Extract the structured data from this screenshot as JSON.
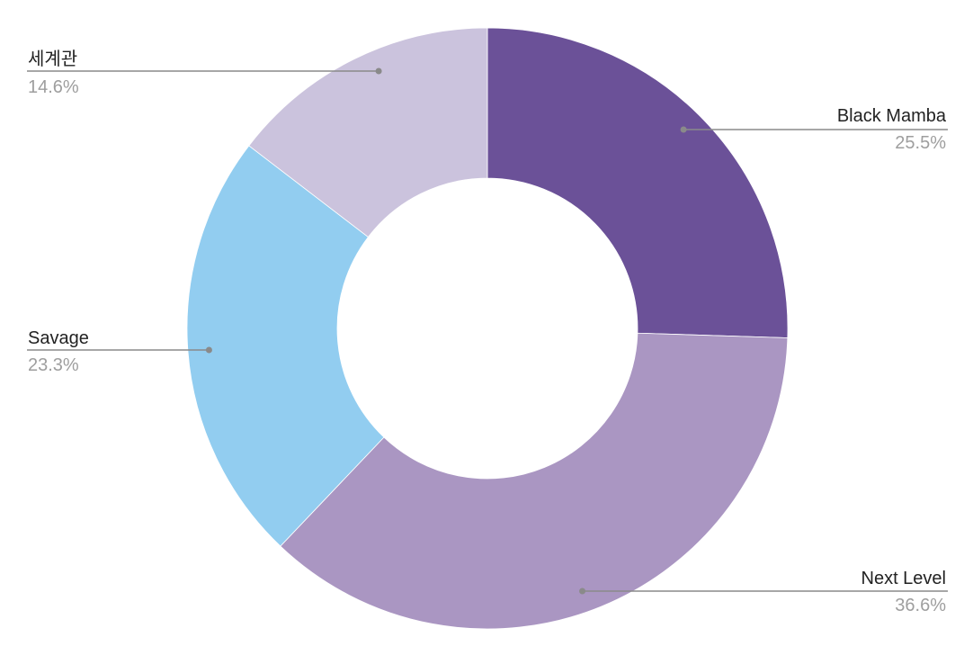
{
  "chart_data": {
    "type": "pie",
    "donut": true,
    "slices": [
      {
        "label": "Black Mamba",
        "value": 25.5,
        "percent_label": "25.5%",
        "color": "#6b5198"
      },
      {
        "label": "Next Level",
        "value": 36.6,
        "percent_label": "36.6%",
        "color": "#aa96c2"
      },
      {
        "label": "Savage",
        "value": 23.3,
        "percent_label": "23.3%",
        "color": "#92cdf0"
      },
      {
        "label": "세계관",
        "value": 14.6,
        "percent_label": "14.6%",
        "color": "#cbc3dd"
      }
    ],
    "start_angle": "12 o'clock",
    "direction": "clockwise",
    "legend": "none"
  }
}
